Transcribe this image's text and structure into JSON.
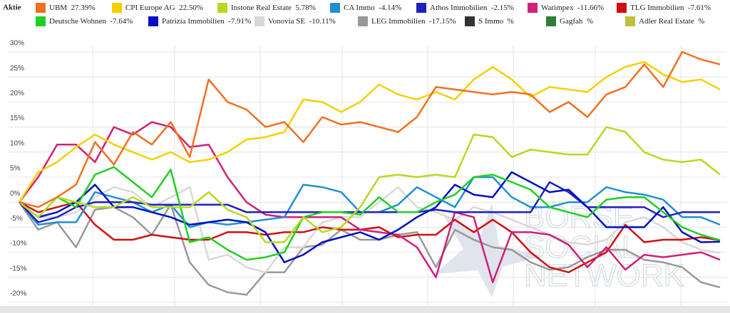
{
  "header_label": "Aktie",
  "chart_data": {
    "type": "line",
    "ylim": [
      -20,
      30
    ],
    "yticks": [
      {
        "value": -20,
        "label": "-20%"
      },
      {
        "value": -15,
        "label": "-15%"
      },
      {
        "value": -10,
        "label": "-10%"
      },
      {
        "value": -5,
        "label": "-5%"
      },
      {
        "value": 0,
        "label": "0%"
      },
      {
        "value": 5,
        "label": "5%"
      },
      {
        "value": 10,
        "label": "10%"
      },
      {
        "value": 15,
        "label": "15%"
      },
      {
        "value": 20,
        "label": "20%"
      },
      {
        "value": 25,
        "label": "25%"
      },
      {
        "value": 30,
        "label": "30%"
      }
    ],
    "grid": true,
    "watermark": [
      "BÖRSE",
      "SOCIAL",
      "NETWORK"
    ],
    "series": [
      {
        "name": "UBM",
        "change": 27.39,
        "change_label": "27.39%",
        "color": "#f07020",
        "values": [
          0,
          -1,
          1,
          3.5,
          12,
          7.5,
          14,
          11.5,
          16,
          9,
          24.5,
          20,
          18.5,
          15,
          16,
          12,
          17,
          15.5,
          16,
          15,
          14,
          17,
          23,
          22.5,
          22,
          21.5,
          22,
          21.5,
          18,
          20,
          17,
          21.5,
          23,
          27.5,
          23,
          30,
          28.5,
          27.5
        ]
      },
      {
        "name": "CPI Europe AG",
        "change": 22.5,
        "change_label": "22.50%",
        "color": "#f5d000",
        "values": [
          0,
          6,
          8,
          11,
          13.5,
          11.5,
          10,
          8.5,
          10,
          8,
          8.5,
          10,
          12.5,
          13,
          14,
          20.5,
          20,
          18,
          20,
          23.5,
          21.5,
          20.5,
          22,
          20.5,
          24.5,
          27,
          24.5,
          21,
          23,
          22.5,
          22,
          25,
          27,
          28,
          25.5,
          24,
          24.5,
          22.5
        ]
      },
      {
        "name": "Instone Real Estate",
        "change": 5.78,
        "change_label": "5.78%",
        "color": "#b8d820",
        "values": [
          0,
          -3,
          1,
          0,
          -1,
          -1,
          1,
          -1,
          -1,
          -1,
          2,
          -1.5,
          -3,
          -8,
          -8,
          -3,
          -6,
          -5,
          -1,
          5,
          5.5,
          5,
          5.5,
          5,
          13.5,
          13,
          9,
          10.5,
          10,
          9.5,
          9.5,
          15,
          14,
          10,
          8.5,
          8,
          8.5,
          5.5
        ]
      },
      {
        "name": "CA Immo",
        "change": -4.14,
        "change_label": "-4.14%",
        "color": "#2090d0",
        "values": [
          0,
          -4.5,
          -4,
          -4,
          2,
          1,
          0,
          -2,
          -0.5,
          -5,
          -4,
          -4.5,
          -4,
          -3.5,
          -3,
          3.5,
          3,
          2,
          -2,
          -2,
          -0.5,
          3,
          1,
          -1,
          5,
          5,
          1,
          -1,
          -1,
          0,
          0,
          3,
          2,
          1.5,
          0.5,
          -3,
          -3,
          -4.5
        ]
      },
      {
        "name": "Athos Immobilien",
        "change": -2.15,
        "change_label": "-2.15%",
        "color": "#2020c0",
        "values": [
          0,
          -4,
          -3,
          -1,
          0,
          0,
          0,
          -0.5,
          -0.5,
          -0.5,
          -0.5,
          -0.5,
          -2,
          -2,
          -2,
          -2,
          -2,
          -2,
          -2,
          -2,
          -2,
          -2,
          -1.5,
          -2,
          -2,
          -2,
          -2,
          -2,
          4,
          2,
          -1,
          -1,
          -1,
          -1,
          -3,
          -2,
          -2,
          -2
        ]
      },
      {
        "name": "Warimpex",
        "change": -11.66,
        "change_label": "-11.66%",
        "color": "#d0207a",
        "values": [
          0,
          5,
          11.5,
          11.5,
          8,
          15,
          13.5,
          16,
          15,
          11,
          11.5,
          5,
          0,
          -2.5,
          -3,
          -3,
          -3,
          -3,
          -5.5,
          -6,
          -6.5,
          -9,
          -15,
          -2,
          -3,
          -16,
          -6,
          -6,
          -6.5,
          -8.5,
          -13,
          -9,
          -13.5,
          -10.5,
          -11,
          -10.5,
          -10,
          -11.5
        ]
      },
      {
        "name": "TLG Immobilien",
        "change": -7.61,
        "change_label": "-7.61%",
        "color": "#d01010",
        "values": [
          0,
          -2,
          -1,
          0,
          -4.5,
          -7.5,
          -7.5,
          -6.5,
          -7,
          -7.5,
          -7.5,
          -6,
          -6,
          -6.5,
          -6,
          -6,
          -5,
          -5.5,
          -5.5,
          -5,
          -7,
          -6.5,
          -6.5,
          -3.5,
          -6,
          -3.5,
          -6,
          -10,
          -13,
          -14,
          -12,
          -10,
          -4.5,
          -8,
          -7.5,
          -7.5,
          -7,
          -7.6
        ]
      },
      {
        "name": "Deutsche Wohnen",
        "change": -7.64,
        "change_label": "-7.64%",
        "color": "#20d020",
        "values": [
          0,
          -3,
          1,
          -1,
          5.5,
          7,
          4,
          1,
          6.5,
          -8,
          -7,
          -9.5,
          -11.5,
          -11,
          -10,
          -3,
          -2,
          -2,
          -2.5,
          1,
          -2,
          -2,
          0,
          1.5,
          5,
          5.5,
          4,
          2.5,
          -1,
          -2,
          -3,
          0.5,
          1,
          1,
          -2,
          -5,
          -6.5,
          -7.6
        ]
      },
      {
        "name": "Patrizia Immobilien",
        "change": -7.91,
        "change_label": "-7.91%",
        "color": "#0010c0",
        "values": [
          0,
          -3,
          -2,
          0,
          3.5,
          -1,
          -1,
          -2,
          -3,
          -4.5,
          -4,
          -3.5,
          -4,
          -6,
          -12,
          -10.5,
          -8,
          -7,
          -6,
          -7.5,
          -5.5,
          -3,
          -1,
          3.5,
          1.5,
          1,
          6,
          4,
          2,
          2.5,
          -1,
          -5,
          -5,
          -5,
          -1,
          -6,
          -8,
          -7.9
        ]
      },
      {
        "name": "Vonovia SE",
        "change": -10.11,
        "change_label": "-10.11%",
        "color": "#d8d8d8",
        "values": [
          0,
          -3,
          -3,
          -2,
          1,
          3,
          2,
          -1,
          1,
          3,
          -11.5,
          -10.5,
          -13,
          -14,
          -9,
          -9,
          -4,
          -3,
          -3,
          0,
          3,
          -1,
          -2,
          -3.5,
          -1,
          -2,
          -3.5,
          -5,
          -6.5,
          -8,
          -8.5,
          -7.5,
          -4,
          -3,
          -5,
          -8,
          -9.5,
          -10.1
        ]
      },
      {
        "name": "LEG Immobilien",
        "change": -17.15,
        "change_label": "-17.15%",
        "color": "#999999",
        "values": [
          0,
          -5.5,
          -4,
          -9,
          -1.5,
          -1,
          -3,
          -6.5,
          -0.5,
          -12,
          -16.5,
          -18,
          -18.5,
          -14,
          -14,
          -9,
          -8.5,
          -5.5,
          -7.5,
          -7.5,
          -6.5,
          -6,
          -13,
          -5.5,
          -7.5,
          -9,
          -9.5,
          -12,
          -13.5,
          -13,
          -11,
          -9.5,
          -9.5,
          -11.5,
          -12,
          -13,
          -16,
          -17
        ]
      },
      {
        "name": "S Immo",
        "change_label": "%",
        "color": "#333333"
      },
      {
        "name": "Gagfah",
        "change_label": "%",
        "color": "#2e7d32"
      },
      {
        "name": "Adler Real Estate",
        "change_label": "%",
        "color": "#c0c040"
      }
    ]
  }
}
